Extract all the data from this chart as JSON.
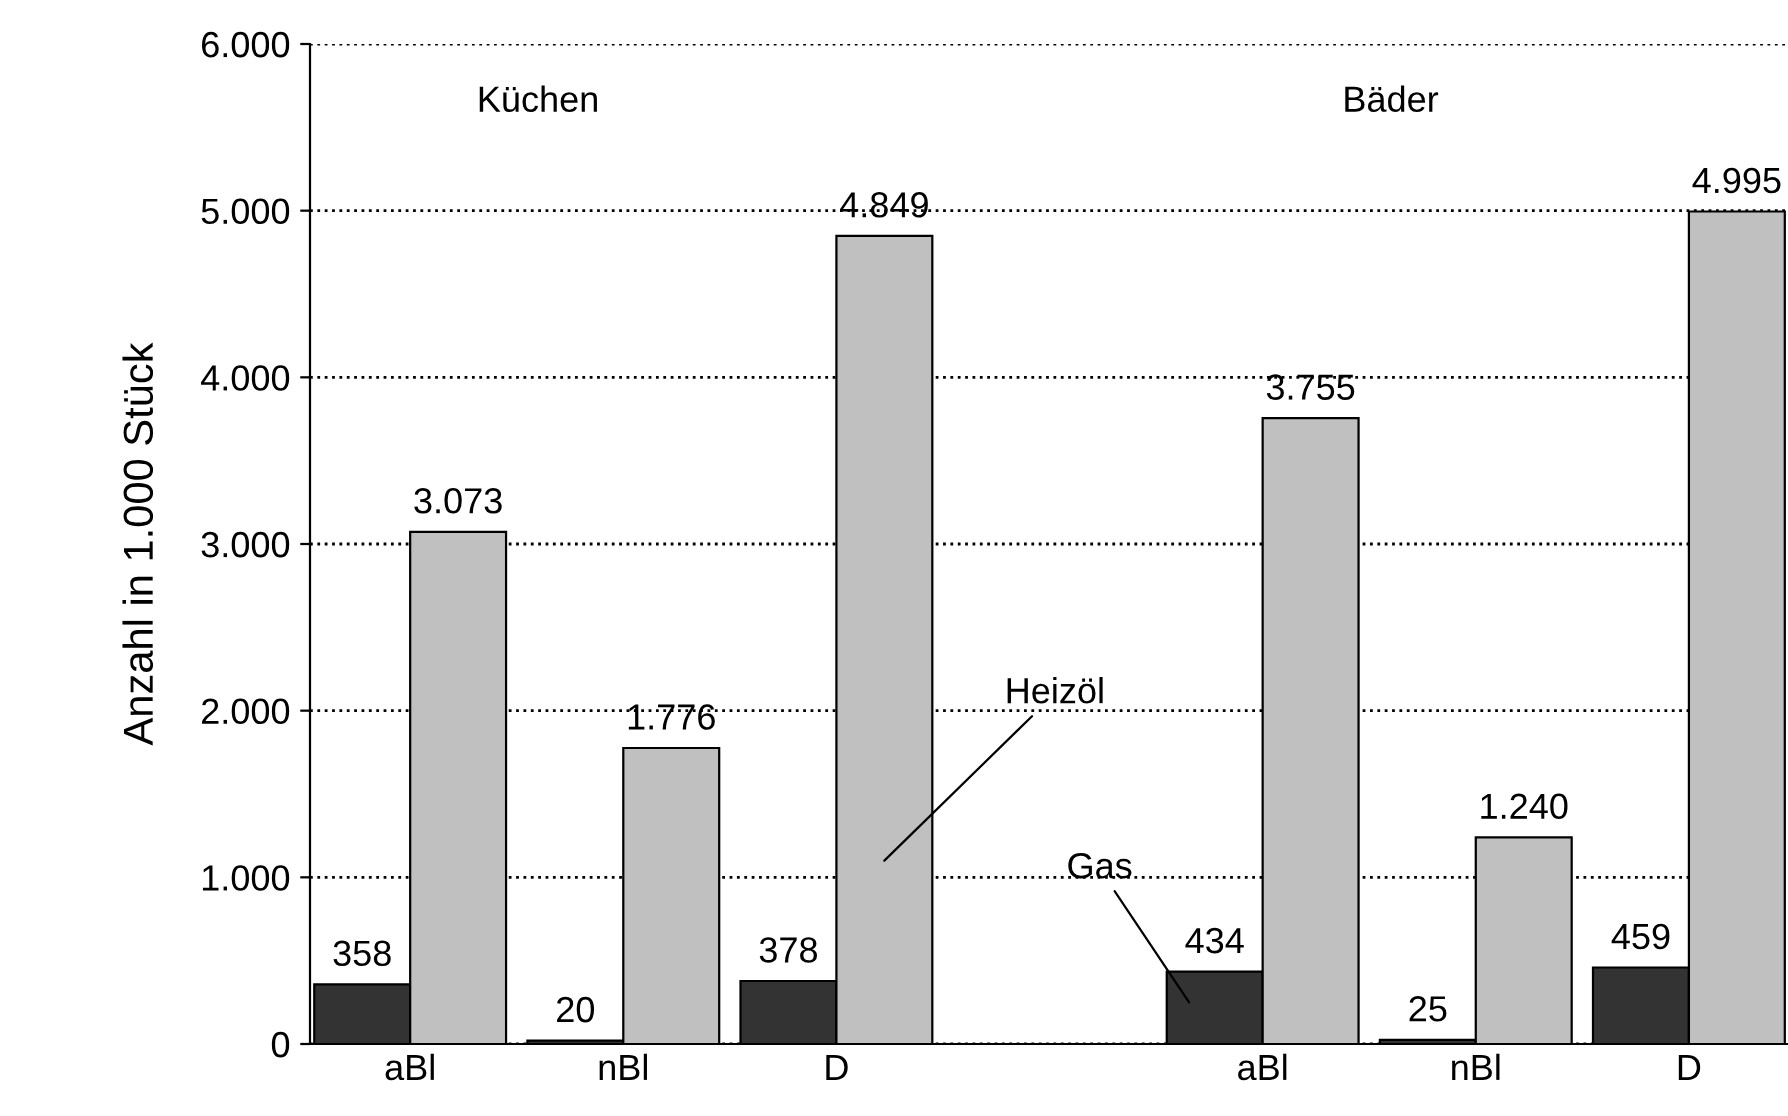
{
  "chart_data": {
    "type": "bar",
    "ylabel": "Anzahl in 1.000 Stück",
    "categories": [
      "aBl",
      "nBl",
      "D",
      null,
      "aBl",
      "nBl",
      "D"
    ],
    "series": [
      {
        "name": "Gas",
        "color": "#333333",
        "values": [
          358,
          20,
          378,
          null,
          434,
          25,
          459
        ],
        "value_labels": [
          "358",
          "20",
          "378",
          null,
          "434",
          "25",
          "459"
        ]
      },
      {
        "name": "Heizöl",
        "color": "#c0c0c0",
        "values": [
          3073,
          1776,
          4849,
          null,
          3755,
          1240,
          4995
        ],
        "value_labels": [
          "3.073",
          "1.776",
          "4.849",
          null,
          "3.755",
          "1.240",
          "4.995"
        ]
      }
    ],
    "ylim": [
      0,
      6000
    ],
    "yticks": [
      0,
      {
        "value": 1000,
        "label": "1.000"
      },
      {
        "value": 2000,
        "label": "2.000"
      },
      {
        "value": 3000,
        "label": "3.000"
      },
      {
        "value": 4000,
        "label": "4.000"
      },
      {
        "value": 5000,
        "label": "5.000"
      },
      {
        "value": 6000,
        "label": "6.000"
      }
    ],
    "grid": "y",
    "line_style": "dotted",
    "annotations": [
      "Küchen",
      "Bäder"
    ]
  }
}
